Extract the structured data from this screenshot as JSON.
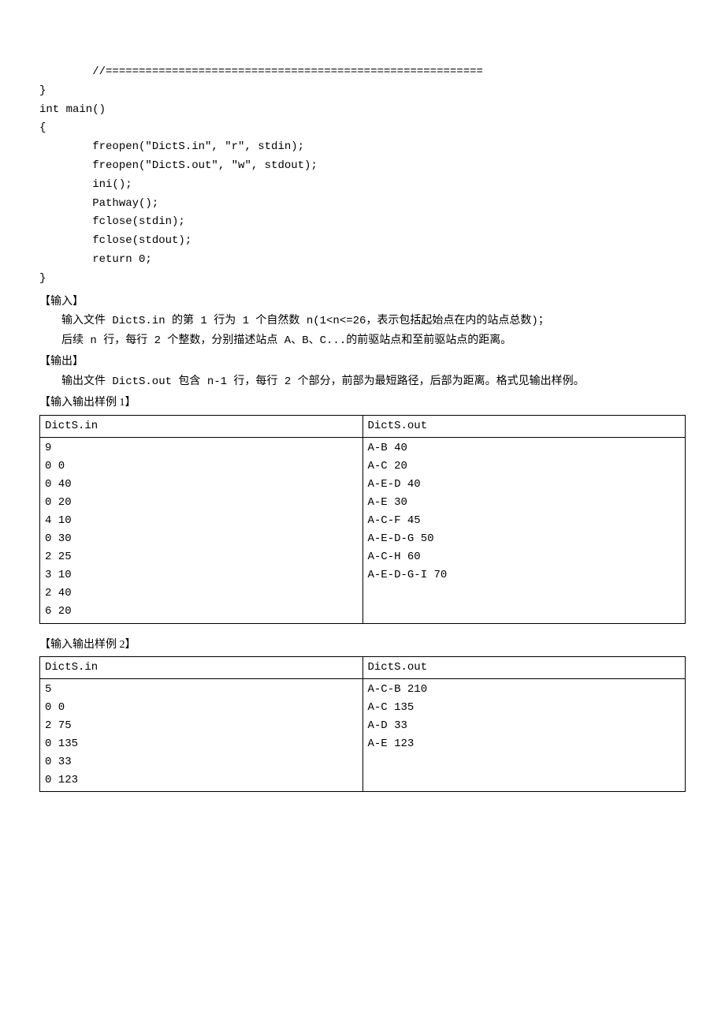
{
  "code": {
    "lines": [
      "        //=========================================================",
      "}",
      "int main()",
      "{",
      "        freopen(\"DictS.in\", \"r\", stdin);",
      "        freopen(\"DictS.out\", \"w\", stdout);",
      "        ini();",
      "        Pathway();",
      "        fclose(stdin);",
      "        fclose(stdout);",
      "        return 0;",
      "}"
    ]
  },
  "sections": {
    "input_heading": "【输入】",
    "input_line1": "输入文件 DictS.in 的第 1 行为 1 个自然数 n(1<n<=26，表示包括起始点在内的站点总数)；",
    "input_line2": "后续 n 行，每行 2 个整数，分别描述站点 A、B、C...的前驱站点和至前驱站点的距离。",
    "output_heading": "【输出】",
    "output_line1": "输出文件 DictS.out 包含 n-1 行，每行 2 个部分，前部为最短路径，后部为距离。格式见输出样例。",
    "sample1_heading": "【输入输出样例 1】",
    "sample2_heading": "【输入输出样例 2】"
  },
  "table1": {
    "header_in": "DictS.in",
    "header_out": "DictS.out",
    "in_lines": [
      "9",
      "0 0",
      "0 40",
      "0 20",
      "4 10",
      "0 30",
      "2 25",
      "3 10",
      "2 40",
      "6 20"
    ],
    "out_lines": [
      "A-B 40",
      "A-C 20",
      "A-E-D 40",
      "A-E 30",
      "A-C-F 45",
      "A-E-D-G 50",
      "A-C-H 60",
      "A-E-D-G-I 70",
      "",
      ""
    ]
  },
  "table2": {
    "header_in": "DictS.in",
    "header_out": "DictS.out",
    "in_lines": [
      "5",
      "0 0",
      "2 75",
      "0 135",
      "0 33",
      "0 123"
    ],
    "out_lines": [
      "A-C-B 210",
      "A-C 135",
      "A-D 33",
      "A-E 123",
      "",
      ""
    ]
  }
}
